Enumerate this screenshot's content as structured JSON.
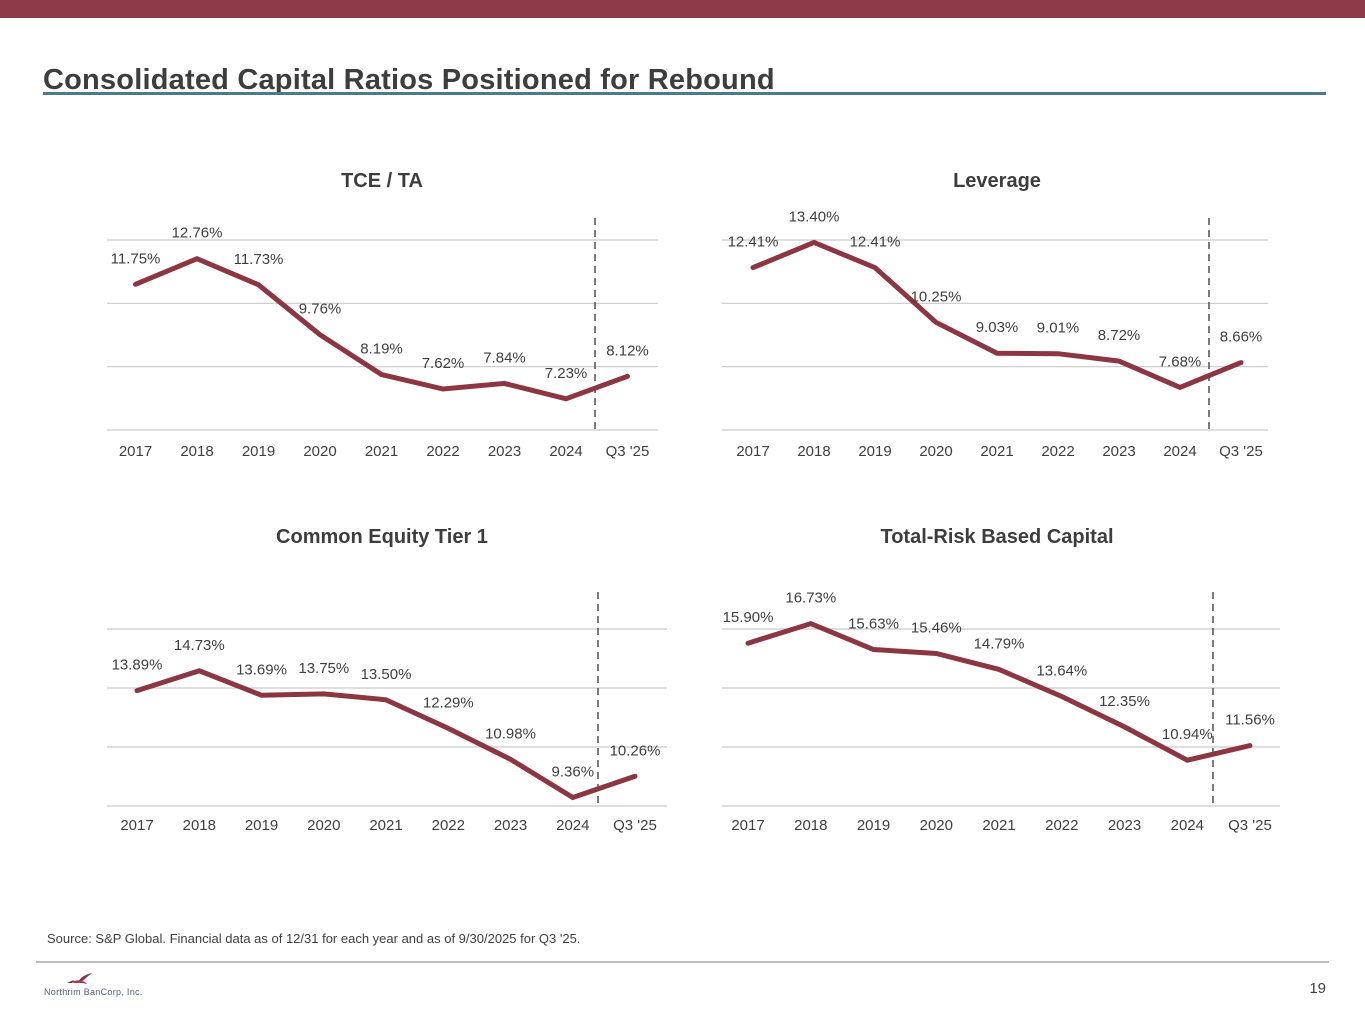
{
  "header": {
    "title": "Consolidated Capital Ratios Positioned for Rebound"
  },
  "footer": {
    "source": "Source: S&P Global. Financial data as of 12/31 for each year and as of 9/30/2025 for Q3 '25.",
    "page_number": "19",
    "logo_text": "Northrim BanCorp, Inc."
  },
  "colors": {
    "accent_bar": "#8E3A47",
    "line": "#8C3642",
    "title_underline": "#4D7890",
    "grid": "#C9C9C9",
    "divider": "#5A5A5A",
    "label_text": "#3F3F3F",
    "title_text": "#3D3D3D"
  },
  "chart_data": [
    {
      "type": "line",
      "title": "TCE / TA",
      "categories": [
        "2017",
        "2018",
        "2019",
        "2020",
        "2021",
        "2022",
        "2023",
        "2024",
        "Q3 '25"
      ],
      "values": [
        11.75,
        12.76,
        11.73,
        9.76,
        8.19,
        7.62,
        7.84,
        7.23,
        8.12
      ],
      "labels": [
        "11.75%",
        "12.76%",
        "11.73%",
        "9.76%",
        "8.19%",
        "7.62%",
        "7.84%",
        "7.23%",
        "8.12%"
      ],
      "ylim": [
        6,
        13.5
      ],
      "gridline_values": [
        6,
        8.5,
        11,
        13.5
      ],
      "grid": true,
      "legend": "none",
      "divider_before": "Q3 '25"
    },
    {
      "type": "line",
      "title": "Leverage",
      "categories": [
        "2017",
        "2018",
        "2019",
        "2020",
        "2021",
        "2022",
        "2023",
        "2024",
        "Q3 '25"
      ],
      "values": [
        12.41,
        13.4,
        12.41,
        10.25,
        9.03,
        9.01,
        8.72,
        7.68,
        8.66
      ],
      "labels": [
        "12.41%",
        "13.40%",
        "12.41%",
        "10.25%",
        "9.03%",
        "9.01%",
        "8.72%",
        "7.68%",
        "8.66%"
      ],
      "ylim": [
        6,
        13.5
      ],
      "gridline_values": [
        6,
        8.5,
        11,
        13.5
      ],
      "grid": true,
      "legend": "none",
      "divider_before": "Q3 '25"
    },
    {
      "type": "line",
      "title": "Common Equity Tier 1",
      "categories": [
        "2017",
        "2018",
        "2019",
        "2020",
        "2021",
        "2022",
        "2023",
        "2024",
        "Q3 '25"
      ],
      "values": [
        13.89,
        14.73,
        13.69,
        13.75,
        13.5,
        12.29,
        10.98,
        9.36,
        10.26
      ],
      "labels": [
        "13.89%",
        "14.73%",
        "13.69%",
        "13.75%",
        "13.50%",
        "12.29%",
        "10.98%",
        "9.36%",
        "10.26%"
      ],
      "ylim": [
        9,
        16.5
      ],
      "gridline_values": [
        9,
        11.5,
        14,
        16.5
      ],
      "grid": true,
      "legend": "none",
      "divider_before": "Q3 '25"
    },
    {
      "type": "line",
      "title": "Total-Risk Based Capital",
      "categories": [
        "2017",
        "2018",
        "2019",
        "2020",
        "2021",
        "2022",
        "2023",
        "2024",
        "Q3 '25"
      ],
      "values": [
        15.9,
        16.73,
        15.63,
        15.46,
        14.79,
        13.64,
        12.35,
        10.94,
        11.56
      ],
      "labels": [
        "15.90%",
        "16.73%",
        "15.63%",
        "15.46%",
        "14.79%",
        "13.64%",
        "12.35%",
        "10.94%",
        "11.56%"
      ],
      "ylim": [
        9,
        16.5
      ],
      "gridline_values": [
        9,
        11.5,
        14,
        16.5
      ],
      "grid": true,
      "legend": "none",
      "divider_before": "Q3 '25"
    }
  ]
}
